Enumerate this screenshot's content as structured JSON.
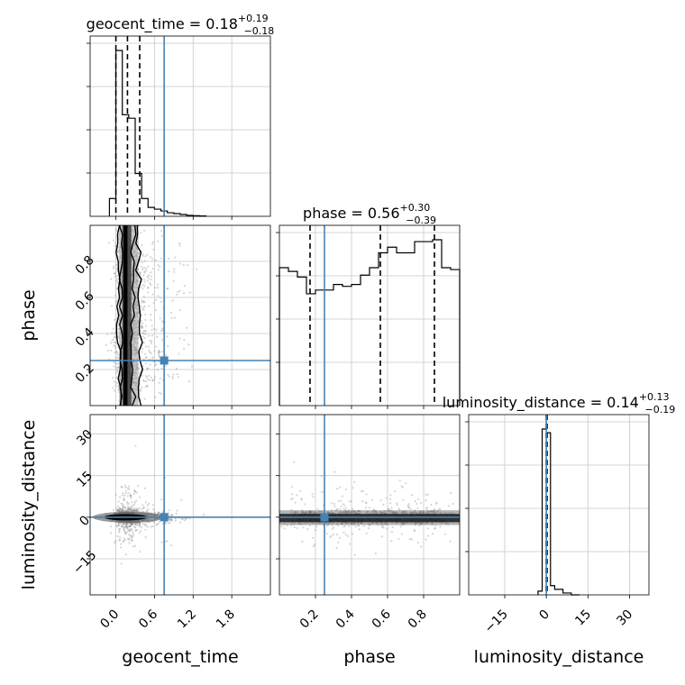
{
  "colors": {
    "truth": "#4682b4",
    "hist": "#000000",
    "grid": "#c8c8c8",
    "scatter": "#8a8a8a"
  },
  "chart_data": {
    "type": "scatter",
    "kind": "corner-plot",
    "parameters": [
      "geocent_time",
      "phase",
      "luminosity_distance"
    ],
    "axis_labels": [
      "geocent_time",
      "phase",
      "luminosity_distance"
    ],
    "ranges": {
      "geocent_time": [
        -0.4,
        2.4
      ],
      "phase": [
        0.0,
        1.0
      ],
      "luminosity_distance": [
        -28,
        37
      ]
    },
    "ticks": {
      "geocent_time": [
        0.0,
        0.6,
        1.2,
        1.8
      ],
      "phase": [
        0.2,
        0.4,
        0.6,
        0.8
      ],
      "luminosity_distance": [
        -15,
        0,
        15,
        30
      ]
    },
    "tick_labels": {
      "geocent_time": [
        "0.0",
        "0.6",
        "1.2",
        "1.8"
      ],
      "phase": [
        "0.2",
        "0.4",
        "0.6",
        "0.8"
      ],
      "luminosity_distance": [
        "−15",
        "0",
        "15",
        "30"
      ]
    },
    "truths": {
      "geocent_time": 0.75,
      "phase": 0.25,
      "luminosity_distance": 0.0
    },
    "titles": [
      {
        "name": "geocent_time",
        "main": "geocent_time = 0.18",
        "sup": "+0.19",
        "sub": "−0.18"
      },
      {
        "name": "phase",
        "main": "phase = 0.56",
        "sup": "+0.30",
        "sub": "−0.39"
      },
      {
        "name": "luminosity_distance",
        "main": "luminosity_distance = 0.14",
        "sup": "+0.13",
        "sub": "−0.19"
      }
    ],
    "quantiles": {
      "geocent_time": [
        0.0,
        0.18,
        0.37
      ],
      "phase": [
        0.17,
        0.56,
        0.86
      ],
      "luminosity_distance": [
        -0.05,
        0.14,
        0.27
      ]
    },
    "histograms": {
      "geocent_time": {
        "edges": [
          -0.1,
          0.0,
          0.1,
          0.2,
          0.3,
          0.4,
          0.5,
          0.6,
          0.7,
          0.8,
          0.9,
          1.0,
          1.1,
          1.2,
          1.3,
          1.4
        ],
        "counts": [
          0.1,
          0.93,
          0.57,
          0.55,
          0.24,
          0.1,
          0.05,
          0.04,
          0.03,
          0.02,
          0.015,
          0.01,
          0.005,
          0.003,
          0.002
        ]
      },
      "phase": {
        "edges": [
          0.0,
          0.05,
          0.1,
          0.15,
          0.2,
          0.25,
          0.3,
          0.35,
          0.4,
          0.45,
          0.5,
          0.55,
          0.6,
          0.65,
          0.7,
          0.75,
          0.8,
          0.85,
          0.9,
          0.95,
          1.0
        ],
        "counts": [
          0.74,
          0.72,
          0.69,
          0.6,
          0.62,
          0.62,
          0.65,
          0.64,
          0.65,
          0.7,
          0.74,
          0.82,
          0.85,
          0.82,
          0.82,
          0.88,
          0.88,
          0.89,
          0.74,
          0.73
        ]
      },
      "luminosity_distance": {
        "edges": [
          -3,
          -1.5,
          0,
          1.5,
          3,
          6,
          9,
          12
        ],
        "counts": [
          0.02,
          0.9,
          0.88,
          0.05,
          0.03,
          0.01,
          0.0
        ]
      }
    },
    "grid": true
  }
}
